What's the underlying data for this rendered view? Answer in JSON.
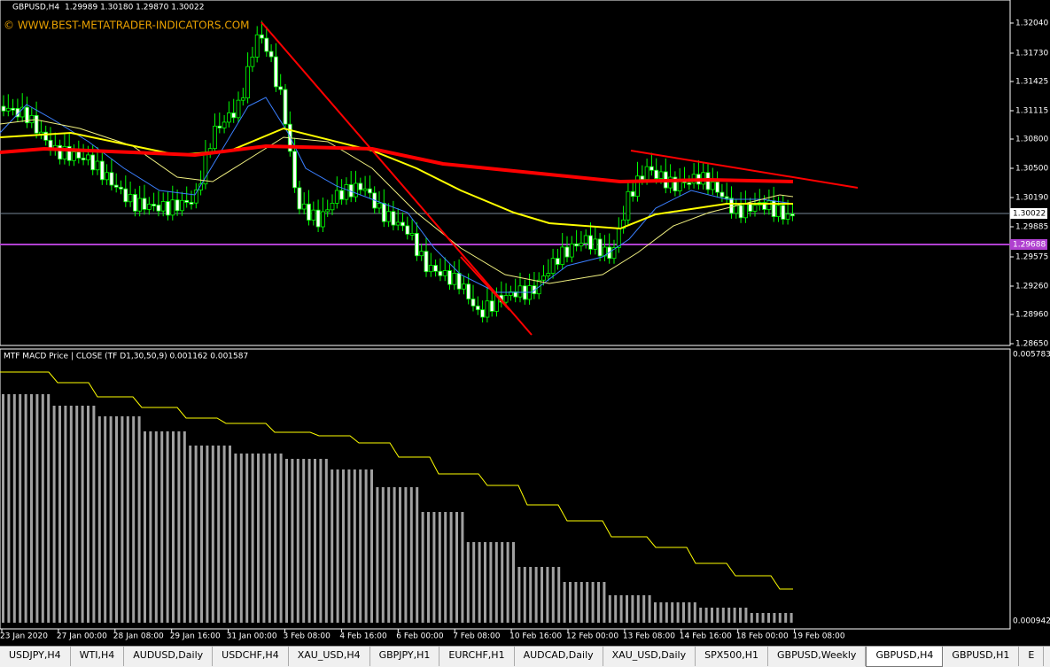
{
  "header": {
    "symbol": "GBPUSD,H4",
    "ohlc": "1.29989 1.30180 1.29870 1.30022",
    "watermark": "© WWW.BEST-METATRADER-INDICATORS.COM"
  },
  "price_axis": [
    "1.32040",
    "1.31730",
    "1.31425",
    "1.31115",
    "1.30800",
    "1.30500",
    "1.30190",
    "1.29885",
    "1.29575",
    "1.29260",
    "1.28960",
    "1.28650"
  ],
  "current_price": "1.30022",
  "level_price": "1.29688",
  "indicator": {
    "label": "MTF MACD Price | CLOSE  (TF D1,30,50,9) 0.001162 0.001587",
    "max": "0.005783",
    "min": "0.000942"
  },
  "time_axis": [
    "23 Jan 2020",
    "27 Jan 00:00",
    "28 Jan 08:00",
    "29 Jan 16:00",
    "31 Jan 00:00",
    "3 Feb 08:00",
    "4 Feb 16:00",
    "6 Feb 00:00",
    "7 Feb 08:00",
    "10 Feb 16:00",
    "12 Feb 00:00",
    "13 Feb 08:00",
    "14 Feb 16:00",
    "18 Feb 00:00",
    "19 Feb 08:00"
  ],
  "tabs": [
    {
      "label": "USDJPY,H4"
    },
    {
      "label": "WTI,H4"
    },
    {
      "label": "AUDUSD,Daily"
    },
    {
      "label": "USDCHF,H4"
    },
    {
      "label": "XAU_USD,H4"
    },
    {
      "label": "GBPJPY,H1"
    },
    {
      "label": "EURCHF,H1"
    },
    {
      "label": "AUDCAD,Daily"
    },
    {
      "label": "XAU_USD,Daily"
    },
    {
      "label": "SPX500,H1"
    },
    {
      "label": "GBPUSD,Weekly"
    },
    {
      "label": "GBPUSD,H4",
      "active": true
    },
    {
      "label": "GBPUSD,H1"
    },
    {
      "label": "E"
    }
  ]
}
